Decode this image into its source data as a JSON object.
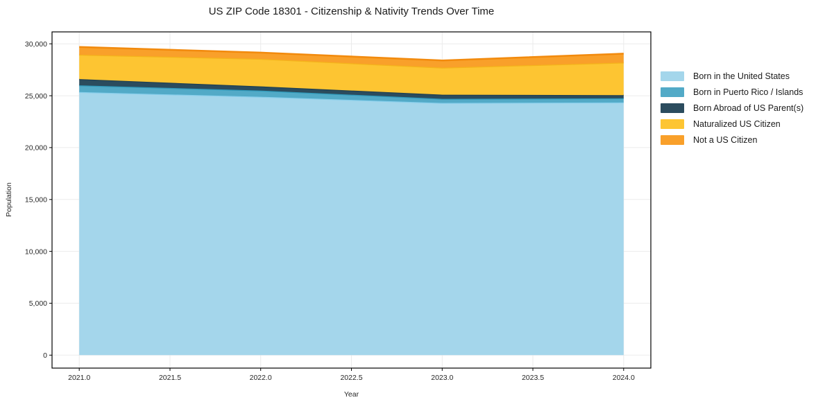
{
  "page": {
    "background_color": "#ffffff",
    "plot_background_color": "#ffffff",
    "grid_color": "#ebebeb",
    "spine_color": "#000000",
    "text_color": "#262626"
  },
  "chart_data": {
    "type": "area",
    "stacked": true,
    "title": "US ZIP Code 18301 - Citizenship & Nativity Trends Over Time",
    "xlabel": "Year",
    "ylabel": "Population",
    "x": [
      2021,
      2022,
      2023,
      2024
    ],
    "series": [
      {
        "name": "Born in the United States",
        "values": [
          25350,
          24900,
          24300,
          24350
        ],
        "fill": "#A4D6EB",
        "edge": "#87CEEB"
      },
      {
        "name": "Born in Puerto Rico / Islands",
        "values": [
          650,
          600,
          400,
          400
        ],
        "fill": "#52AAC7",
        "edge": "#2F9ABB"
      },
      {
        "name": "Born Abroad of US Parent(s)",
        "values": [
          600,
          400,
          400,
          300
        ],
        "fill": "#2B4C5E",
        "edge": "#1F4052"
      },
      {
        "name": "Naturalized US Citizen",
        "values": [
          2350,
          2650,
          2600,
          3150
        ],
        "fill": "#FDC532",
        "edge": "#F4B31B"
      },
      {
        "name": "Not a US Citizen",
        "values": [
          750,
          600,
          700,
          850
        ],
        "fill": "#F9A02A",
        "edge": "#F28A0D"
      }
    ],
    "totals": [
      29700,
      29150,
      28400,
      29050
    ],
    "xlim": [
      2020.85,
      2024.15
    ],
    "ylim": [
      -1250,
      31150
    ],
    "xticks": {
      "values": [
        2021.0,
        2021.5,
        2022.0,
        2022.5,
        2023.0,
        2023.5,
        2024.0
      ],
      "labels": [
        "2021.0",
        "2021.5",
        "2022.0",
        "2022.5",
        "2023.0",
        "2023.5",
        "2024.0"
      ]
    },
    "yticks": {
      "values": [
        0,
        5000,
        10000,
        15000,
        20000,
        25000,
        30000
      ],
      "labels": [
        "0",
        "5,000",
        "10,000",
        "15,000",
        "20,000",
        "25,000",
        "30,000"
      ]
    },
    "grid": true,
    "legend_position": "outside-right-top"
  }
}
